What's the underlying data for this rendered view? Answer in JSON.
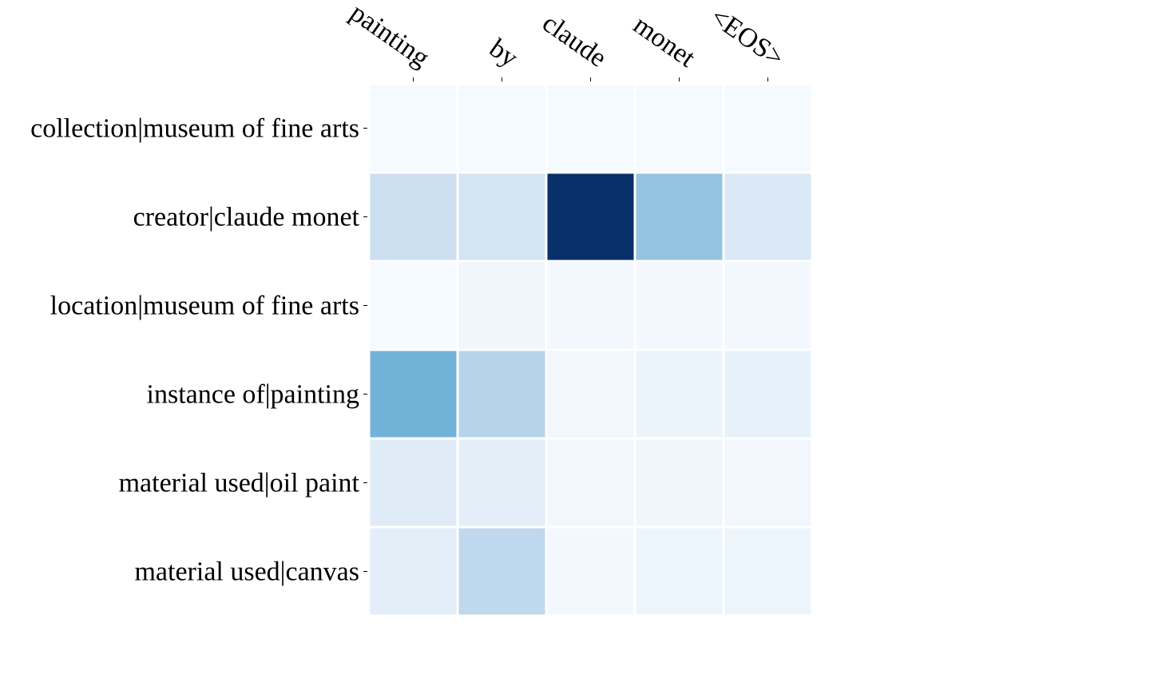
{
  "chart_data": {
    "type": "heatmap",
    "colormap": "Blues",
    "x_tick_labels": [
      "painting",
      "by",
      "claude",
      "monet",
      "<EOS>"
    ],
    "y_tick_labels": [
      "collection|museum of fine arts",
      "creator|claude monet",
      "location|museum of fine arts",
      "instance of|painting",
      "material used|oil paint",
      "material used|canvas"
    ],
    "values": [
      [
        0.01,
        0.01,
        0.01,
        0.01,
        0.01
      ],
      [
        0.22,
        0.18,
        1.0,
        0.4,
        0.14
      ],
      [
        0.01,
        0.04,
        0.02,
        0.02,
        0.02
      ],
      [
        0.48,
        0.3,
        0.03,
        0.06,
        0.08
      ],
      [
        0.12,
        0.1,
        0.03,
        0.04,
        0.03
      ],
      [
        0.1,
        0.27,
        0.02,
        0.05,
        0.05
      ]
    ],
    "x_axis_position": "top",
    "grid": false,
    "legend": "none"
  }
}
